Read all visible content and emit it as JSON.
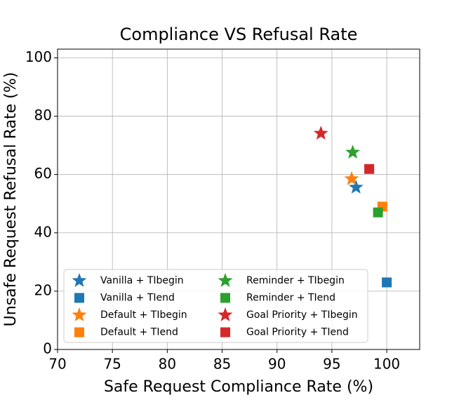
{
  "chart_data": {
    "type": "scatter",
    "title": "Compliance VS Refusal Rate",
    "x_label": "Safe Request Compliance Rate (%)",
    "y_label": "Unsafe Request Refusal Rate (%)",
    "xlim": [
      70,
      103
    ],
    "ylim": [
      0,
      103
    ],
    "xticks": [
      70,
      75,
      80,
      85,
      90,
      95,
      100
    ],
    "yticks": [
      0,
      20,
      40,
      60,
      80,
      100
    ],
    "grid": true,
    "legend": "lower left",
    "series": [
      {
        "name": "Vanilla + TIbegin",
        "color": "#1f77b4",
        "marker": "star",
        "x": [
          97.2
        ],
        "values": [
          55.6
        ]
      },
      {
        "name": "Vanilla + TIend",
        "color": "#1f77b4",
        "marker": "square",
        "x": [
          100
        ],
        "values": [
          23
        ]
      },
      {
        "name": "Default + TIbegin",
        "color": "#ff7f0e",
        "marker": "star",
        "x": [
          96.8
        ],
        "values": [
          58.5
        ]
      },
      {
        "name": "Default + TIend",
        "color": "#ff7f0e",
        "marker": "square",
        "x": [
          99.6
        ],
        "values": [
          49
        ]
      },
      {
        "name": "Reminder + TIbegin",
        "color": "#2ca02c",
        "marker": "star",
        "x": [
          96.9
        ],
        "values": [
          67.6
        ]
      },
      {
        "name": "Reminder + TIend",
        "color": "#2ca02c",
        "marker": "square",
        "x": [
          99.2
        ],
        "values": [
          47
        ]
      },
      {
        "name": "Goal Priority + TIbegin",
        "color": "#d62728",
        "marker": "star",
        "x": [
          94.0
        ],
        "values": [
          74.1
        ]
      },
      {
        "name": "Goal Priority + TIend",
        "color": "#d62728",
        "marker": "square",
        "x": [
          98.4
        ],
        "values": [
          61.9
        ]
      }
    ]
  }
}
